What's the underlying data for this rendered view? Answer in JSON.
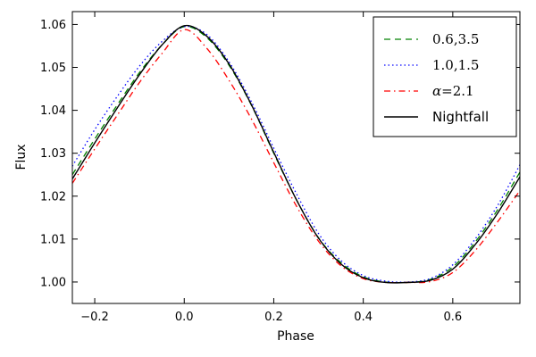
{
  "chart_data": {
    "type": "line",
    "title": "",
    "xlabel": "Phase",
    "ylabel": "Flux",
    "xlim": [
      -0.25,
      0.75
    ],
    "ylim": [
      0.995,
      1.063
    ],
    "xticks": [
      -0.2,
      0.0,
      0.2,
      0.4,
      0.6
    ],
    "xtick_labels": [
      "−0.2",
      "0.0",
      "0.2",
      "0.4",
      "0.6"
    ],
    "yticks": [
      1.0,
      1.01,
      1.02,
      1.03,
      1.04,
      1.05,
      1.06
    ],
    "ytick_labels": [
      "1.00",
      "1.01",
      "1.02",
      "1.03",
      "1.04",
      "1.05",
      "1.06"
    ],
    "grid": false,
    "legend_position": "top-right",
    "series": [
      {
        "name": "0.6,3.5",
        "label_prefix": "",
        "label_value": "0.6,3.5",
        "color": "#008000",
        "style": "dashed",
        "x": [
          -0.25,
          -0.2,
          -0.15,
          -0.1,
          -0.05,
          0.0,
          0.05,
          0.1,
          0.15,
          0.2,
          0.25,
          0.3,
          0.35,
          0.4,
          0.45,
          0.5,
          0.55,
          0.6,
          0.65,
          0.7,
          0.75
        ],
        "y": [
          1.025,
          1.0333,
          1.0412,
          1.0488,
          1.0552,
          1.0595,
          1.057,
          1.0505,
          1.0412,
          1.03,
          1.0193,
          1.0103,
          1.0045,
          1.0012,
          1.0,
          0.9999,
          1.0006,
          1.0035,
          1.0093,
          1.0168,
          1.0256
        ]
      },
      {
        "name": "1.0,1.5",
        "label_prefix": "",
        "label_value": "1.0,1.5",
        "color": "#0000ff",
        "style": "dotted",
        "x": [
          -0.25,
          -0.2,
          -0.15,
          -0.1,
          -0.05,
          0.0,
          0.05,
          0.1,
          0.15,
          0.2,
          0.25,
          0.3,
          0.35,
          0.4,
          0.45,
          0.5,
          0.55,
          0.6,
          0.65,
          0.7,
          0.75
        ],
        "y": [
          1.027,
          1.0355,
          1.0432,
          1.0503,
          1.056,
          1.0595,
          1.0577,
          1.0513,
          1.042,
          1.0312,
          1.0207,
          1.0113,
          1.005,
          1.0015,
          1.0002,
          1.0,
          1.0008,
          1.004,
          1.01,
          1.0178,
          1.0273
        ]
      },
      {
        "name": "alpha=2.1",
        "label_prefix": "α",
        "label_value": "=2.1",
        "color": "#ff0000",
        "style": "dashdot",
        "x": [
          -0.25,
          -0.2,
          -0.15,
          -0.1,
          -0.05,
          0.0,
          0.05,
          0.1,
          0.15,
          0.2,
          0.25,
          0.3,
          0.35,
          0.4,
          0.45,
          0.5,
          0.55,
          0.6,
          0.65,
          0.7,
          0.75
        ],
        "y": [
          1.023,
          1.031,
          1.0388,
          1.0465,
          1.0532,
          1.0588,
          1.0545,
          1.047,
          1.038,
          1.0278,
          1.0178,
          1.0095,
          1.0038,
          1.0008,
          0.9999,
          0.9999,
          1.0001,
          1.0022,
          1.0073,
          1.014,
          1.0213
        ]
      },
      {
        "name": "Nightfall",
        "label_prefix": "",
        "label_value": "Nightfall",
        "color": "#000000",
        "style": "solid",
        "x": [
          -0.25,
          -0.2,
          -0.15,
          -0.1,
          -0.05,
          0.0,
          0.05,
          0.1,
          0.15,
          0.2,
          0.25,
          0.3,
          0.35,
          0.4,
          0.45,
          0.5,
          0.55,
          0.6,
          0.65,
          0.7,
          0.75
        ],
        "y": [
          1.024,
          1.0324,
          1.0405,
          1.0483,
          1.0552,
          1.0597,
          1.0573,
          1.0508,
          1.0413,
          1.0302,
          1.0193,
          1.0102,
          1.0042,
          1.001,
          0.9999,
          0.9999,
          1.0004,
          1.003,
          1.0087,
          1.016,
          1.0245
        ]
      }
    ]
  }
}
